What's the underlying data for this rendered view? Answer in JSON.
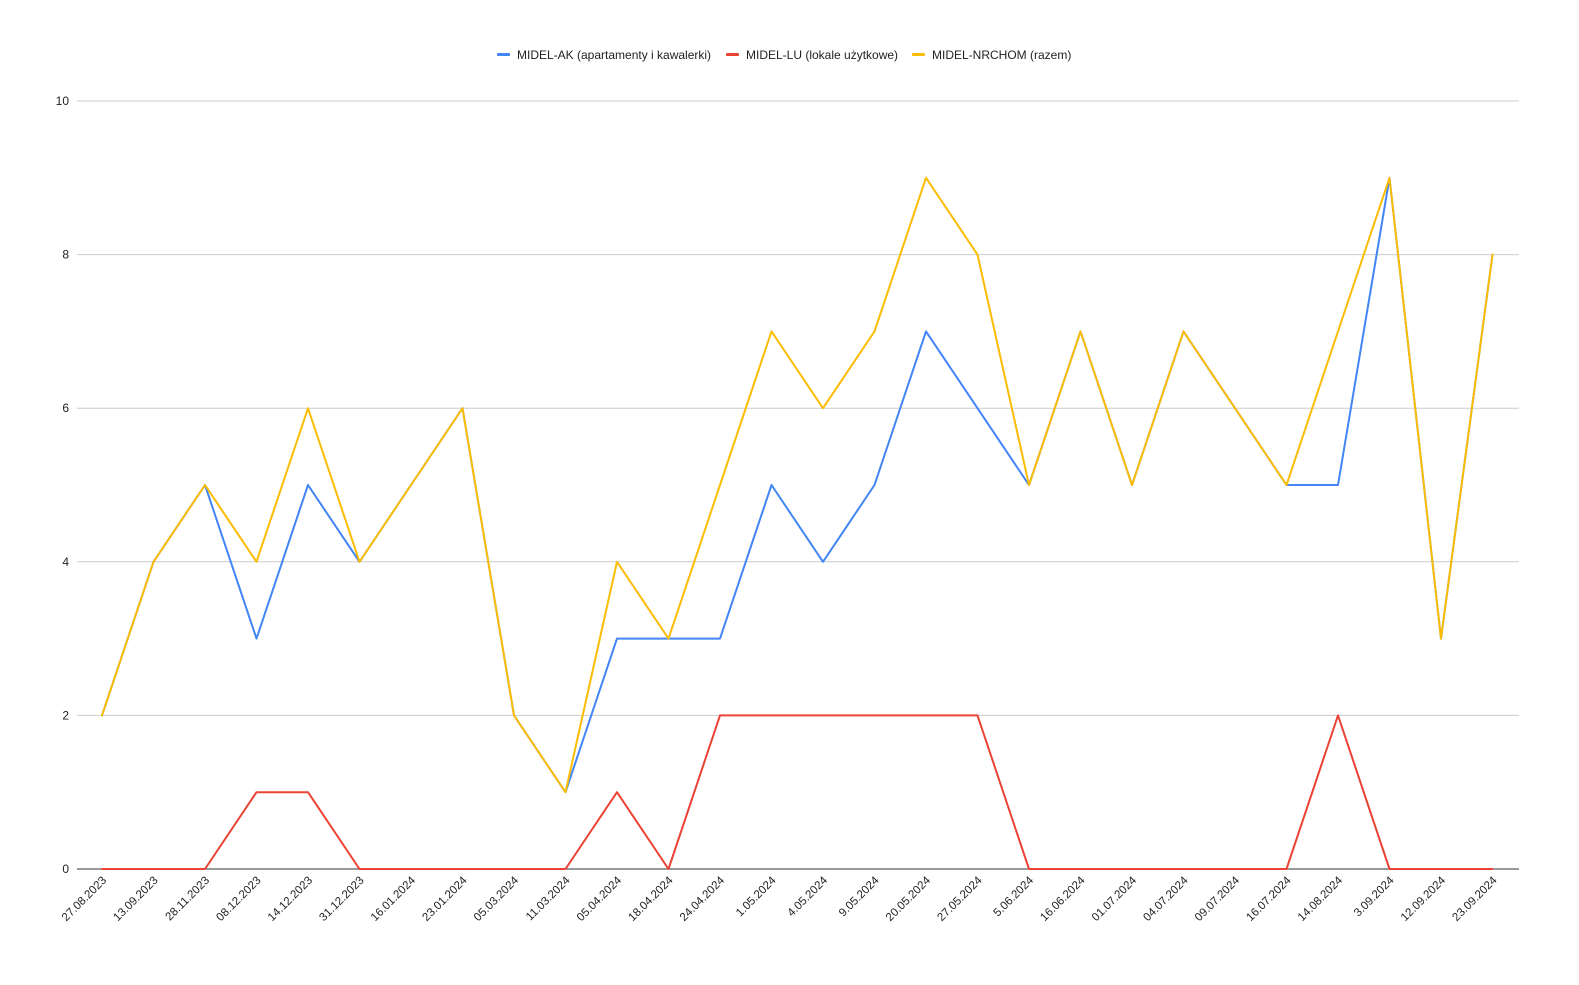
{
  "chart_data": {
    "type": "line",
    "title": "",
    "xlabel": "",
    "ylabel": "",
    "ylim": [
      0,
      10
    ],
    "yticks": [
      0,
      2,
      4,
      6,
      8,
      10
    ],
    "grid": "horizontal",
    "legend_position": "top",
    "categories": [
      "27.08.2023",
      "13.09.2023",
      "28.11.2023",
      "08.12.2023",
      "14.12.2023",
      "31.12.2023",
      "16.01.2024",
      "23.01.2024",
      "05.03.2024",
      "11.03.2024",
      "05.04.2024",
      "18.04.2024",
      "24.04.2024",
      "1.05.2024",
      "4.05.2024",
      "9.05.2024",
      "20.05.2024",
      "27.05.2024",
      "5.06.2024",
      "16.06.2024",
      "01.07.2024",
      "04.07.2024",
      "09.07.2024",
      "16.07.2024",
      "14.08.2024",
      "3.09.2024",
      "12.09.2024",
      "23.09.2024"
    ],
    "series": [
      {
        "name": "MIDEL-AK (apartamenty i kawalerki)",
        "color": "#4285f4",
        "values": [
          2,
          4,
          5,
          3,
          5,
          4,
          5,
          6,
          2,
          1,
          3,
          3,
          3,
          5,
          4,
          5,
          7,
          6,
          5,
          7,
          5,
          7,
          6,
          5,
          5,
          9,
          3,
          8
        ]
      },
      {
        "name": "MIDEL-LU (lokale użytkowe)",
        "color": "#ea4335",
        "values": [
          0,
          0,
          0,
          1,
          1,
          0,
          0,
          0,
          0,
          0,
          1,
          0,
          2,
          2,
          2,
          2,
          2,
          2,
          0,
          0,
          0,
          0,
          0,
          0,
          2,
          0,
          0,
          0
        ]
      },
      {
        "name": "MIDEL-NRCHOM (razem)",
        "color": "#fbbc04",
        "values": [
          2,
          4,
          5,
          4,
          6,
          4,
          5,
          6,
          2,
          1,
          4,
          3,
          5,
          7,
          6,
          7,
          9,
          8,
          5,
          7,
          5,
          7,
          6,
          5,
          7,
          9,
          3,
          8
        ]
      }
    ]
  }
}
